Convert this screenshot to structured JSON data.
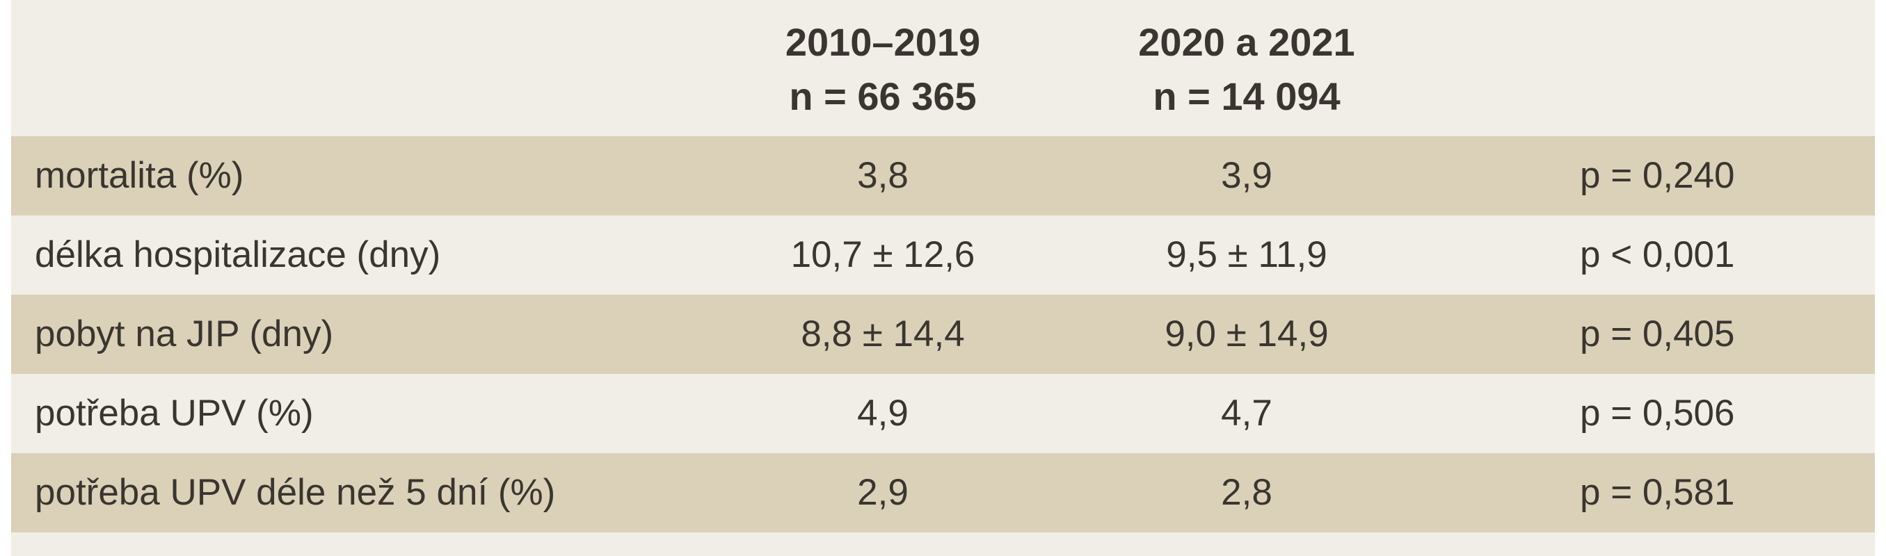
{
  "table": {
    "columns": [
      {
        "line1": "2010–2019",
        "line2": "n = 66 365"
      },
      {
        "line1": "2020 a 2021",
        "line2": "n = 14 094"
      }
    ],
    "rows": [
      {
        "label": "mortalita (%)",
        "c1": "3,8",
        "c2": "3,9",
        "p": "p = 0,240"
      },
      {
        "label": "délka hospitalizace (dny)",
        "c1": "10,7 ± 12,6",
        "c2": "9,5 ± 11,9",
        "p": "p < 0,001"
      },
      {
        "label": "pobyt na JIP (dny)",
        "c1": "8,8 ± 14,4",
        "c2": "9,0 ± 14,9",
        "p": "p = 0,405"
      },
      {
        "label": "potřeba UPV (%)",
        "c1": "4,9",
        "c2": "4,7",
        "p": "p = 0,506"
      },
      {
        "label": "potřeba UPV déle než 5 dní (%)",
        "c1": "2,9",
        "c2": "2,8",
        "p": "p = 0,581"
      }
    ]
  },
  "colors": {
    "header_bg": "#f0eee6",
    "row_dark": "#dbd1b8",
    "row_light": "#f0eee6",
    "text": "#3a3530"
  }
}
